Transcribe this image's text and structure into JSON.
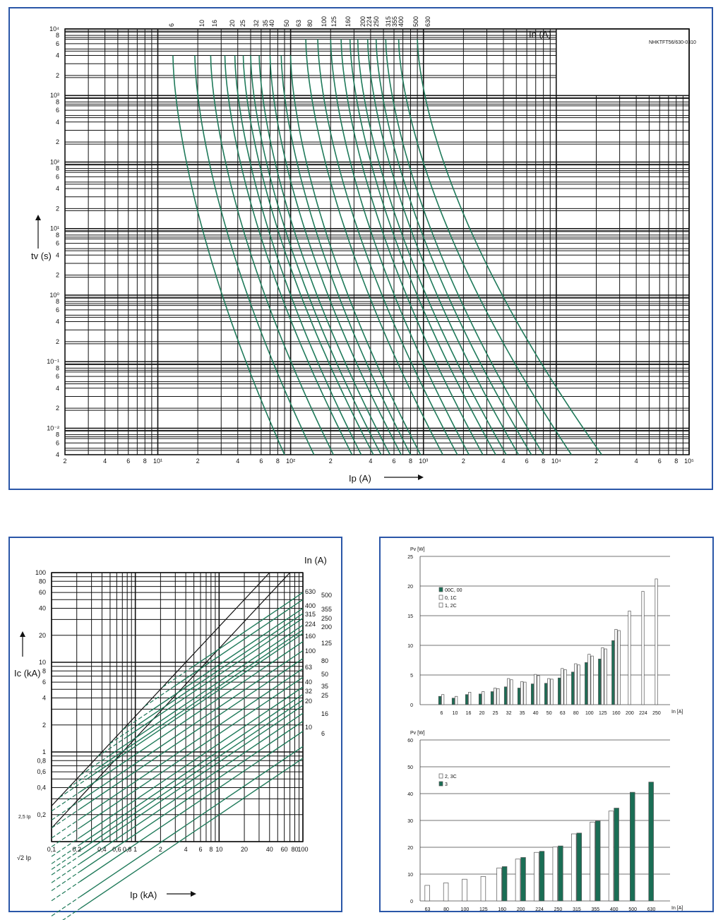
{
  "chart_data": [
    {
      "type": "line",
      "id": "time-current",
      "title": "",
      "corner_code": "NHKTFT56/630-0310",
      "xlabel": "Ip (A)",
      "ylabel": "tv (s)",
      "series_label": "In (A)",
      "x_scale": "log",
      "y_scale": "log",
      "xlim": [
        2,
        100000
      ],
      "ylim": [
        0.004,
        10000
      ],
      "x_ticks": [
        "2",
        "4",
        "6",
        "8",
        "10¹",
        "2",
        "4",
        "6",
        "8",
        "10²",
        "2",
        "4",
        "6",
        "8",
        "10³",
        "2",
        "4",
        "6",
        "8",
        "10⁴",
        "2",
        "4",
        "6",
        "8",
        "10⁵"
      ],
      "y_ticks": [
        "10⁴",
        "8",
        "6",
        "4",
        "2",
        "10³",
        "8",
        "6",
        "4",
        "2",
        "10²",
        "8",
        "6",
        "4",
        "2",
        "10¹",
        "8",
        "6",
        "4",
        "2",
        "10⁰",
        "8",
        "6",
        "4",
        "2",
        "10⁻¹",
        "8",
        "6",
        "4",
        "2",
        "10⁻²",
        "8",
        "6",
        "4"
      ],
      "curve_labels": [
        "6",
        "10",
        "16",
        "20",
        "25",
        "32",
        "35",
        "40",
        "50",
        "63",
        "80",
        "100",
        "125",
        "160",
        "200",
        "224",
        "250",
        "315",
        "355",
        "400",
        "500",
        "630"
      ],
      "series": [
        {
          "name": "6",
          "start": [
            13,
            4000
          ],
          "end": [
            90,
            0.004
          ]
        },
        {
          "name": "10",
          "start": [
            19,
            4000
          ],
          "end": [
            150,
            0.004
          ]
        },
        {
          "name": "16",
          "start": [
            25,
            4000
          ],
          "end": [
            210,
            0.004
          ]
        },
        {
          "name": "20",
          "start": [
            32,
            4000
          ],
          "end": [
            290,
            0.004
          ]
        },
        {
          "name": "25",
          "start": [
            38,
            4000
          ],
          "end": [
            340,
            0.004
          ]
        },
        {
          "name": "32",
          "start": [
            44,
            4000
          ],
          "end": [
            420,
            0.004
          ]
        },
        {
          "name": "35",
          "start": [
            50,
            4000
          ],
          "end": [
            480,
            0.004
          ]
        },
        {
          "name": "40",
          "start": [
            58,
            4000
          ],
          "end": [
            560,
            0.004
          ]
        },
        {
          "name": "50",
          "start": [
            70,
            4000
          ],
          "end": [
            680,
            0.004
          ]
        },
        {
          "name": "63",
          "start": [
            85,
            4000
          ],
          "end": [
            800,
            0.004
          ]
        },
        {
          "name": "80",
          "start": [
            100,
            4000
          ],
          "end": [
            950,
            0.004
          ]
        },
        {
          "name": "100",
          "start": [
            130,
            7000
          ],
          "end": [
            1400,
            0.004
          ]
        },
        {
          "name": "125",
          "start": [
            160,
            7000
          ],
          "end": [
            1800,
            0.004
          ]
        },
        {
          "name": "160",
          "start": [
            200,
            7000
          ],
          "end": [
            2200,
            0.004
          ]
        },
        {
          "name": "200",
          "start": [
            240,
            7000
          ],
          "end": [
            2800,
            0.004
          ]
        },
        {
          "name": "224",
          "start": [
            280,
            7000
          ],
          "end": [
            3500,
            0.004
          ]
        },
        {
          "name": "250",
          "start": [
            320,
            7000
          ],
          "end": [
            4200,
            0.004
          ]
        },
        {
          "name": "315",
          "start": [
            380,
            7000
          ],
          "end": [
            5200,
            0.004
          ]
        },
        {
          "name": "355",
          "start": [
            440,
            7000
          ],
          "end": [
            6500,
            0.004
          ]
        },
        {
          "name": "400",
          "start": [
            520,
            7000
          ],
          "end": [
            8000,
            0.004
          ]
        },
        {
          "name": "500",
          "start": [
            650,
            7000
          ],
          "end": [
            13000,
            0.004
          ]
        },
        {
          "name": "630",
          "start": [
            900,
            7000
          ],
          "end": [
            22000,
            0.004
          ]
        }
      ]
    },
    {
      "type": "line",
      "id": "cutoff-current",
      "title": "",
      "xlabel": "Ip (kA)",
      "ylabel": "Ic (kA)",
      "series_label": "In (A)",
      "x_scale": "log",
      "y_scale": "log",
      "xlim": [
        0.1,
        100
      ],
      "ylim": [
        0.1,
        100
      ],
      "x_ticks": [
        "0,1",
        "0,2",
        "0,4",
        "0,6",
        "0,8",
        "1",
        "2",
        "4",
        "6",
        "8",
        "10",
        "20",
        "40",
        "60",
        "80",
        "100"
      ],
      "y_ticks": [
        "100",
        "80",
        "60",
        "40",
        "20",
        "10",
        "8",
        "6",
        "4",
        "2",
        "1",
        "0,8",
        "0,6",
        "0,4",
        "0,2"
      ],
      "ref_line_labels": [
        "2,5 Ip",
        "√2 Ip"
      ],
      "right_labels": [
        "630",
        "500",
        "400",
        "355",
        "315",
        "250",
        "224",
        "200",
        "160",
        "125",
        "100",
        "80",
        "63",
        "50",
        "40",
        "35",
        "32",
        "25",
        "20",
        "16",
        "10",
        "6"
      ]
    },
    {
      "type": "bar",
      "id": "power-loss-1",
      "ylabel": "Pv [W]",
      "xlabel": "In [A]",
      "ylim": [
        0,
        25
      ],
      "y_ticks": [
        "0",
        "5",
        "10",
        "15",
        "20",
        "25"
      ],
      "categories": [
        "6",
        "10",
        "16",
        "20",
        "25",
        "32",
        "35",
        "40",
        "50",
        "63",
        "80",
        "100",
        "125",
        "160",
        "200",
        "224",
        "250"
      ],
      "series": [
        {
          "name": "00C, 00",
          "color": "#1a6e55",
          "values": [
            1.4,
            1.1,
            1.7,
            1.8,
            2.2,
            3.0,
            2.8,
            3.5,
            3.6,
            4.5,
            5.5,
            7.1,
            7.7,
            10.8,
            null,
            null,
            null
          ]
        },
        {
          "name": "0, 1C",
          "color": "#ffffff",
          "values": [
            1.7,
            1.4,
            2.1,
            2.2,
            2.8,
            4.4,
            3.9,
            5.1,
            4.4,
            6.1,
            6.9,
            8.5,
            9.6,
            12.7,
            15.8,
            19.1,
            21.2
          ]
        },
        {
          "name": "1, 2C",
          "color": "#ffffff",
          "values": [
            null,
            null,
            null,
            null,
            2.7,
            4.2,
            3.8,
            4.9,
            4.3,
            5.9,
            6.7,
            8.2,
            9.4,
            12.5,
            null,
            null,
            null
          ]
        }
      ]
    },
    {
      "type": "bar",
      "id": "power-loss-2",
      "ylabel": "Pv [W]",
      "xlabel": "In [A]",
      "ylim": [
        0,
        60
      ],
      "y_ticks": [
        "0",
        "10",
        "20",
        "30",
        "40",
        "50",
        "60"
      ],
      "categories": [
        "63",
        "80",
        "100",
        "125",
        "160",
        "200",
        "224",
        "250",
        "315",
        "355",
        "400",
        "500",
        "630"
      ],
      "series": [
        {
          "name": "2, 3C",
          "color": "#ffffff",
          "values": [
            5.8,
            6.7,
            8.1,
            9.1,
            12.3,
            15.6,
            18.1,
            20.1,
            25.0,
            29.4,
            33.5,
            null,
            null
          ]
        },
        {
          "name": "3",
          "color": "#1a6e55",
          "values": [
            null,
            null,
            null,
            null,
            12.8,
            16.2,
            18.5,
            20.5,
            25.3,
            29.8,
            34.6,
            40.5,
            44.3
          ]
        }
      ]
    }
  ]
}
